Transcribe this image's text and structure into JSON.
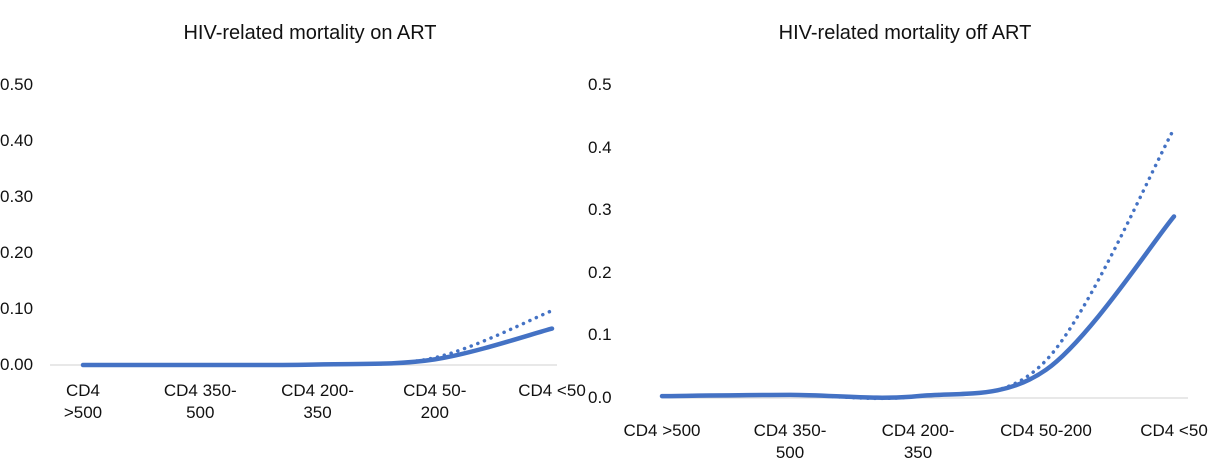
{
  "chart_data": [
    {
      "type": "line",
      "title": "HIV-related mortality on ART",
      "categories": [
        "CD4 >500",
        "CD4 350-500",
        "CD4 200-350",
        "CD4 50-200",
        "CD4 <50"
      ],
      "series": [
        {
          "color": "#4472c4",
          "style": "solid",
          "values": [
            0,
            0,
            0.001,
            0.01,
            0.065
          ]
        },
        {
          "color": "#4472c4",
          "style": "dotted",
          "values": [
            0,
            0,
            0.001,
            0.013,
            0.097
          ]
        }
      ],
      "ylim": [
        0,
        0.5
      ],
      "yticks": [
        {
          "value": 0,
          "label": "0.00"
        },
        {
          "value": 0.1,
          "label": "0.10"
        },
        {
          "value": 0.2,
          "label": "0.20"
        },
        {
          "value": 0.3,
          "label": "0.30"
        },
        {
          "value": 0.4,
          "label": "0.40"
        },
        {
          "value": 0.5,
          "label": "0.50"
        }
      ],
      "grid": false
    },
    {
      "type": "line",
      "title": "HIV-related mortality off ART",
      "categories": [
        "CD4 >500",
        "CD4 350-500",
        "CD4 200-350",
        "CD4 50-200",
        "CD4 <50"
      ],
      "series": [
        {
          "color": "#4472c4",
          "style": "solid",
          "values": [
            0.003,
            0.005,
            0.003,
            0.045,
            0.29
          ]
        },
        {
          "color": "#4472c4",
          "style": "dotted",
          "values": [
            0.003,
            0.005,
            0.003,
            0.06,
            0.43
          ]
        }
      ],
      "ylim": [
        0,
        0.5
      ],
      "yticks": [
        {
          "value": 0,
          "label": "0.0"
        },
        0.1,
        0.2,
        0.3,
        0.4,
        0.5
      ],
      "grid": false
    }
  ]
}
